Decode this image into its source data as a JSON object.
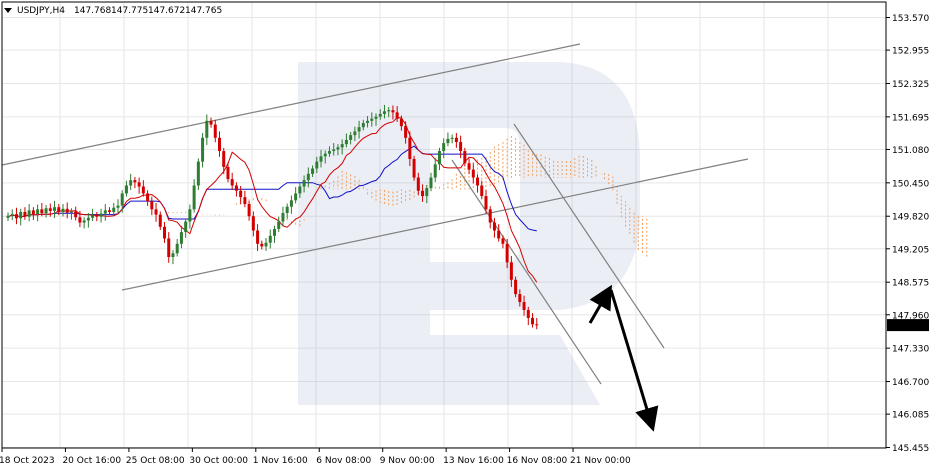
{
  "header": {
    "symbol": "USDJPY,H4",
    "open": "147.768",
    "high": "147.775",
    "low": "147.672",
    "close": "147.765"
  },
  "current_price_label": "147.765",
  "colors": {
    "bull_candle": "#2e7d32",
    "bear_candle": "#d40000",
    "tenkan": "#d40000",
    "kijun": "#1010c8",
    "cloud": "#f0a060",
    "channel": "#808080",
    "arrow": "#000000",
    "grid": "#e6e6e6",
    "price_badge": "#000000"
  },
  "chart_data": {
    "type": "candlestick",
    "symbol": "USDJPY",
    "timeframe": "H4",
    "indicators": [
      "Ichimoku Kinko Hyo"
    ],
    "ylim": [
      145.455,
      153.57
    ],
    "y_ticks": [
      "153.570",
      "152.955",
      "152.325",
      "151.695",
      "151.080",
      "150.450",
      "149.820",
      "149.205",
      "148.575",
      "147.960",
      "147.330",
      "146.700",
      "146.085",
      "145.455"
    ],
    "x_ticks": [
      "18 Oct 2023",
      "20 Oct 16:00",
      "25 Oct 08:00",
      "30 Oct 00:00",
      "1 Nov 16:00",
      "6 Nov 08:00",
      "9 Nov 00:00",
      "13 Nov 16:00",
      "16 Nov 08:00",
      "21 Nov 00:00"
    ],
    "x_tick_index": [
      0,
      15,
      30,
      45,
      60,
      75,
      90,
      105,
      120,
      135
    ],
    "closes": [
      149.83,
      149.86,
      149.78,
      149.9,
      149.81,
      149.93,
      149.86,
      149.95,
      149.88,
      149.97,
      149.92,
      149.99,
      149.9,
      149.96,
      149.89,
      149.91,
      149.8,
      149.7,
      149.74,
      149.79,
      149.84,
      149.81,
      149.87,
      149.93,
      149.9,
      149.98,
      150.02,
      150.25,
      150.4,
      150.5,
      150.46,
      150.38,
      150.25,
      150.1,
      149.95,
      149.85,
      149.62,
      149.4,
      149.05,
      149.12,
      149.3,
      149.52,
      149.72,
      149.95,
      150.4,
      150.85,
      151.3,
      151.62,
      151.55,
      151.3,
      151.05,
      150.75,
      150.52,
      150.4,
      150.3,
      150.18,
      150.05,
      149.82,
      149.55,
      149.3,
      149.25,
      149.32,
      149.45,
      149.58,
      149.72,
      149.88,
      150.0,
      150.12,
      150.25,
      150.38,
      150.5,
      150.62,
      150.72,
      150.85,
      150.95,
      151.0,
      151.05,
      151.08,
      151.12,
      151.18,
      151.26,
      151.35,
      151.42,
      151.5,
      151.58,
      151.62,
      151.66,
      151.7,
      151.75,
      151.8,
      151.82,
      151.78,
      151.66,
      151.52,
      151.3,
      150.9,
      150.55,
      150.3,
      150.2,
      150.35,
      150.55,
      150.8,
      151.05,
      151.2,
      151.28,
      151.3,
      151.22,
      151.05,
      150.82,
      150.7,
      150.55,
      150.4,
      150.2,
      149.95,
      149.7,
      149.55,
      149.4,
      149.3,
      148.95,
      148.62,
      148.35,
      148.2,
      148.05,
      147.9,
      147.78,
      147.77
    ],
    "channels": [
      {
        "name": "upper rising line",
        "points": [
          [
            "18 Oct 2023",
            150.9
          ],
          [
            "20 Nov",
            152.9
          ]
        ]
      },
      {
        "name": "lower rising line",
        "points": [
          [
            "20 Oct",
            148.35
          ],
          [
            "24 Nov",
            151.05
          ]
        ]
      },
      {
        "name": "falling line A",
        "points": [
          [
            "13 Nov",
            151.05
          ],
          [
            "21 Nov",
            146.85
          ]
        ]
      },
      {
        "name": "falling line B",
        "points": [
          [
            "14 Nov",
            151.75
          ],
          [
            "23 Nov",
            147.35
          ]
        ]
      }
    ],
    "arrows": [
      {
        "from": [
          "21 Nov",
          147.9
        ],
        "to": [
          "22 Nov",
          148.55
        ],
        "direction": "up"
      },
      {
        "from": [
          "22 Nov",
          148.55
        ],
        "to": [
          "23 Nov",
          145.7
        ],
        "direction": "down"
      }
    ],
    "last_price": 147.765
  }
}
